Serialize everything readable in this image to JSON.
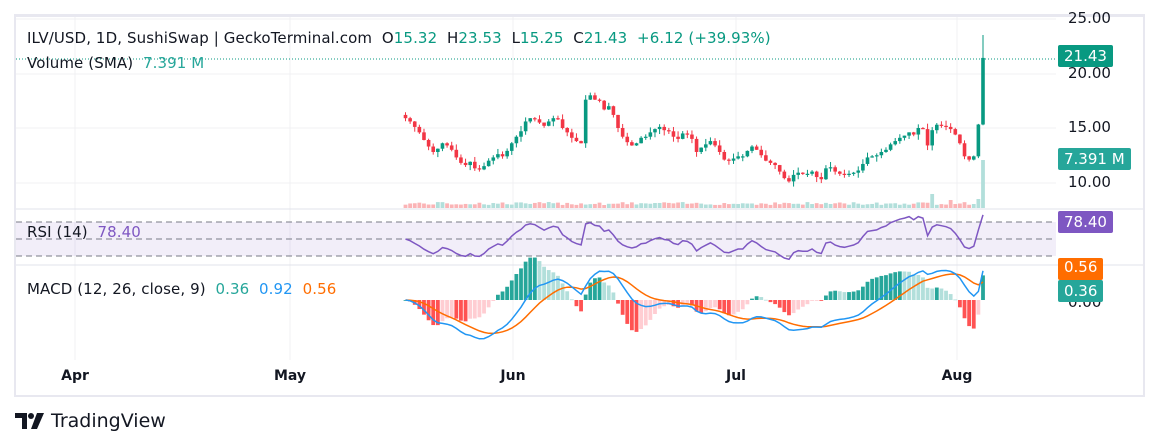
{
  "header": {
    "symbol": "ILV/USD, 1D, SushiSwap | GeckoTerminal.com",
    "open_label": "O",
    "open": "15.32",
    "high_label": "H",
    "high": "23.53",
    "low_label": "L",
    "low": "15.25",
    "close_label": "C",
    "close": "21.43",
    "change": "+6.12 (+39.93%)"
  },
  "volume": {
    "label": "Volume (SMA)",
    "value": "7.391 M"
  },
  "rsi": {
    "label": "RSI (14)",
    "value": "78.40"
  },
  "macd": {
    "label": "MACD (12, 26, close, 9)",
    "hist": "0.36",
    "macd": "0.92",
    "signal": "0.56"
  },
  "price_axis": {
    "ticks": [
      "25.00",
      "20.00",
      "15.00",
      "10.00"
    ],
    "last_price": "21.43",
    "volume_badge": "7.391 M"
  },
  "rsi_axis": {
    "badge": "78.40"
  },
  "macd_axis": {
    "signal_badge": "0.56",
    "hist_badge": "0.36",
    "zero_tick": "0.00"
  },
  "time_axis": {
    "labels": [
      "Apr",
      "May",
      "Jun",
      "Jul",
      "Aug"
    ]
  },
  "brand": {
    "name": "TradingView"
  },
  "colors": {
    "up": "#089981",
    "down": "#f23645",
    "rsi": "#7e57c2",
    "macd": "#2196f3",
    "signal": "#ff6d00",
    "hist_up": "#26a69a",
    "hist_up_light": "#b2dfdb",
    "hist_down": "#ff5252",
    "hist_down_light": "#ffcdd2"
  },
  "chart_data": {
    "type": "candlestick",
    "title": "ILV/USD, 1D, SushiSwap",
    "x_ticks": [
      "Apr",
      "May",
      "Jun",
      "Jul",
      "Aug"
    ],
    "ylim": [
      8.5,
      25.5
    ],
    "y_ticks": [
      10,
      15,
      20,
      25
    ],
    "closes": [
      15.9,
      15.6,
      15.1,
      14.6,
      13.9,
      13.3,
      12.8,
      13.1,
      13.6,
      13.4,
      13.0,
      12.3,
      11.8,
      11.6,
      11.9,
      11.3,
      11.2,
      11.5,
      12.0,
      12.3,
      12.6,
      12.4,
      12.9,
      13.6,
      14.2,
      14.7,
      15.6,
      15.9,
      15.8,
      15.5,
      15.2,
      15.6,
      15.9,
      15.8,
      15.0,
      14.6,
      14.1,
      13.8,
      13.6,
      17.6,
      18.0,
      17.6,
      17.5,
      16.7,
      17.0,
      16.2,
      15.0,
      14.2,
      13.7,
      13.4,
      13.6,
      14.1,
      14.2,
      14.6,
      14.9,
      15.1,
      14.8,
      14.7,
      14.2,
      14.0,
      14.5,
      14.4,
      14.0,
      12.8,
      13.2,
      13.5,
      13.8,
      13.4,
      12.8,
      12.1,
      12.0,
      12.2,
      12.4,
      12.4,
      12.9,
      13.3,
      13.0,
      12.5,
      12.0,
      11.8,
      11.6,
      11.0,
      10.4,
      10.1,
      10.7,
      10.9,
      10.8,
      10.8,
      11.0,
      10.5,
      10.3,
      11.3,
      11.4,
      11.0,
      10.8,
      10.7,
      10.8,
      10.9,
      11.1,
      11.7,
      12.3,
      12.4,
      12.5,
      12.8,
      13.0,
      13.5,
      13.8,
      14.1,
      14.3,
      14.6,
      14.4,
      15.0,
      14.9,
      13.4,
      14.8,
      15.3,
      15.2,
      15.1,
      14.9,
      14.4,
      13.6,
      12.4,
      12.1,
      12.4,
      15.32,
      21.43
    ],
    "last": {
      "open": 15.32,
      "high": 23.53,
      "low": 15.25,
      "close": 21.43,
      "change": 6.12,
      "change_pct": 39.93
    },
    "volume_sma": 7.391,
    "rsi": {
      "period": 14,
      "last": 78.4,
      "bands": [
        70,
        50,
        30
      ]
    },
    "macd": {
      "fast": 12,
      "slow": 26,
      "signal": 9,
      "hist": 0.36,
      "macd": 0.92,
      "signal_value": 0.56
    }
  }
}
